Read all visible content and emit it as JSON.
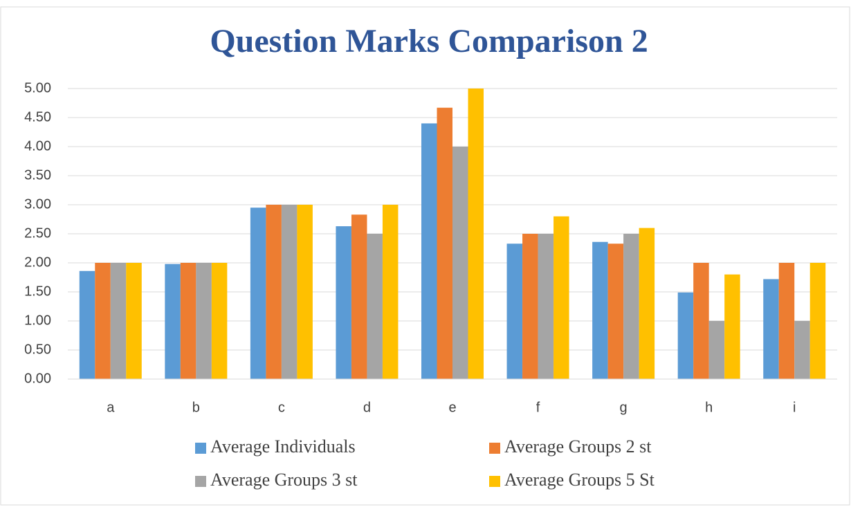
{
  "chart_data": {
    "type": "bar",
    "title": "Question Marks Comparison 2",
    "categories": [
      "a",
      "b",
      "c",
      "d",
      "e",
      "f",
      "g",
      "h",
      "i"
    ],
    "series": [
      {
        "name": "Average Individuals",
        "color": "#5b9bd5",
        "values": [
          1.86,
          1.98,
          2.95,
          2.63,
          4.4,
          2.33,
          2.36,
          1.49,
          1.72
        ]
      },
      {
        "name": "Average Groups 2 st",
        "color": "#ed7d31",
        "values": [
          2,
          2,
          3,
          2.83,
          4.67,
          2.5,
          2.33,
          2,
          2
        ]
      },
      {
        "name": "Average Groups 3 st",
        "color": "#a5a5a5",
        "values": [
          2,
          2,
          3,
          2.5,
          4,
          2.5,
          2.5,
          1,
          1
        ]
      },
      {
        "name": "Average Groups 5 St",
        "color": "#ffc000",
        "values": [
          2,
          2,
          3,
          3,
          5,
          2.8,
          2.6,
          1.8,
          2
        ]
      }
    ],
    "ylim": [
      0,
      5
    ],
    "yticks": [
      {
        "value": 0,
        "label": "0.00"
      },
      {
        "value": 0.5,
        "label": "0.50"
      },
      {
        "value": 1,
        "label": "1.00"
      },
      {
        "value": 1.5,
        "label": "1.50"
      },
      {
        "value": 2,
        "label": "2.00"
      },
      {
        "value": 2.5,
        "label": "2.50"
      },
      {
        "value": 3,
        "label": "3.00"
      },
      {
        "value": 3.5,
        "label": "3.50"
      },
      {
        "value": 4,
        "label": "4.00"
      },
      {
        "value": 4.5,
        "label": "4.50"
      },
      {
        "value": 5,
        "label": "5.00"
      }
    ],
    "grid": true,
    "legend": "bottom"
  }
}
